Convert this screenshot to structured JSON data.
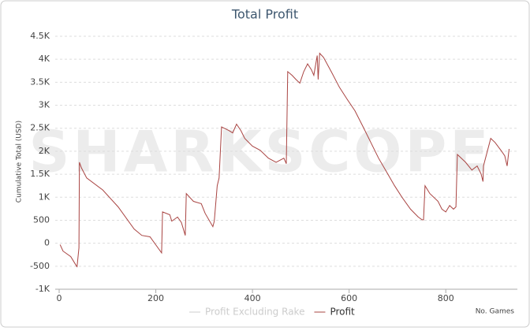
{
  "chart_data": {
    "type": "line",
    "title": "Total Profit",
    "y_label": "Cumulative Total (USD)",
    "x_label": "No. Games",
    "watermark": "SHARKSCOPE",
    "x": [
      2,
      8,
      24,
      36,
      37,
      41,
      42,
      46,
      57,
      90,
      122,
      155,
      171,
      188,
      212,
      214,
      229,
      233,
      245,
      253,
      261,
      263,
      278,
      294,
      302,
      318,
      321,
      327,
      331,
      336,
      351,
      359,
      367,
      376,
      384,
      400,
      416,
      433,
      449,
      465,
      470,
      473,
      482,
      490,
      498,
      506,
      514,
      522,
      527,
      534,
      536,
      539,
      547,
      563,
      580,
      596,
      612,
      629,
      645,
      661,
      678,
      694,
      710,
      727,
      743,
      751,
      754,
      757,
      767,
      784,
      792,
      800,
      808,
      816,
      821,
      824,
      841,
      854,
      865,
      873,
      877,
      878,
      893,
      902,
      914,
      922,
      927,
      931
    ],
    "series": [
      {
        "name": "Profit Excluding Rake",
        "color": "#cccccc",
        "visible": false
      },
      {
        "name": "Profit",
        "color": "#a94442",
        "visible": true,
        "values": [
          -30,
          -170,
          -290,
          -500,
          -510,
          -100,
          1760,
          1640,
          1420,
          1160,
          790,
          310,
          170,
          140,
          -210,
          680,
          620,
          480,
          570,
          450,
          170,
          1080,
          910,
          860,
          650,
          360,
          480,
          1250,
          1420,
          2530,
          2450,
          2400,
          2590,
          2450,
          2280,
          2110,
          2020,
          1850,
          1760,
          1850,
          1730,
          3730,
          3650,
          3560,
          3480,
          3730,
          3900,
          3770,
          3650,
          4080,
          3560,
          4130,
          4040,
          3730,
          3390,
          3130,
          2880,
          2530,
          2190,
          1850,
          1540,
          1250,
          990,
          740,
          570,
          510,
          510,
          1250,
          1080,
          910,
          740,
          680,
          820,
          740,
          790,
          1930,
          1760,
          1590,
          1680,
          1510,
          1340,
          1680,
          2280,
          2190,
          2020,
          1900,
          1680,
          2050
        ]
      }
    ],
    "xlim": [
      0,
      940
    ],
    "xticks": [
      0,
      200,
      400,
      600,
      800
    ],
    "ylim": [
      -1000,
      4500
    ],
    "yticks": [
      {
        "value": -1000,
        "label": "-1K"
      },
      -500,
      0,
      500,
      {
        "value": 1000,
        "label": "1K"
      },
      {
        "value": 1500,
        "label": "1.5K"
      },
      {
        "value": 2000,
        "label": "2K"
      },
      {
        "value": 2500,
        "label": "2.5K"
      },
      {
        "value": 3000,
        "label": "3K"
      },
      {
        "value": 3500,
        "label": "3.5K"
      },
      {
        "value": 4000,
        "label": "4K"
      },
      {
        "value": 4500,
        "label": "4.5K"
      }
    ],
    "grid": true
  }
}
